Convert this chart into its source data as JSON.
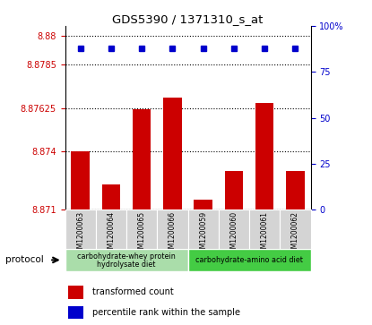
{
  "title": "GDS5390 / 1371310_s_at",
  "samples": [
    "GSM1200063",
    "GSM1200064",
    "GSM1200065",
    "GSM1200066",
    "GSM1200059",
    "GSM1200060",
    "GSM1200061",
    "GSM1200062"
  ],
  "bar_values": [
    8.874,
    8.8723,
    8.8762,
    8.8768,
    8.8715,
    8.873,
    8.8765,
    8.873
  ],
  "percentile_value": 88,
  "ymin": 8.871,
  "ymax": 8.8805,
  "yticks": [
    8.871,
    8.874,
    8.87625,
    8.8785,
    8.88
  ],
  "ytick_labels": [
    "8.871",
    "8.874",
    "8.87625",
    "8.8785",
    "8.88"
  ],
  "right_yticks": [
    0,
    25,
    50,
    75,
    100
  ],
  "right_ytick_labels": [
    "0",
    "25",
    "50",
    "75",
    "100%"
  ],
  "bar_color": "#cc0000",
  "percentile_color": "#0000cc",
  "bar_width": 0.6,
  "group1_label_line1": "carbohydrate-whey protein",
  "group1_label_line2": "hydrolysate diet",
  "group2_label": "carbohydrate-amino acid diet",
  "group1_color": "#aaddaa",
  "group2_color": "#44cc44",
  "group1_indices": [
    0,
    1,
    2,
    3
  ],
  "group2_indices": [
    4,
    5,
    6,
    7
  ],
  "legend_bar_label": "transformed count",
  "legend_percentile_label": "percentile rank within the sample",
  "protocol_label": "protocol",
  "grid_color": "#000000",
  "tick_color_left": "#cc0000",
  "tick_color_right": "#0000cc",
  "bg_gray": "#d4d4d4"
}
